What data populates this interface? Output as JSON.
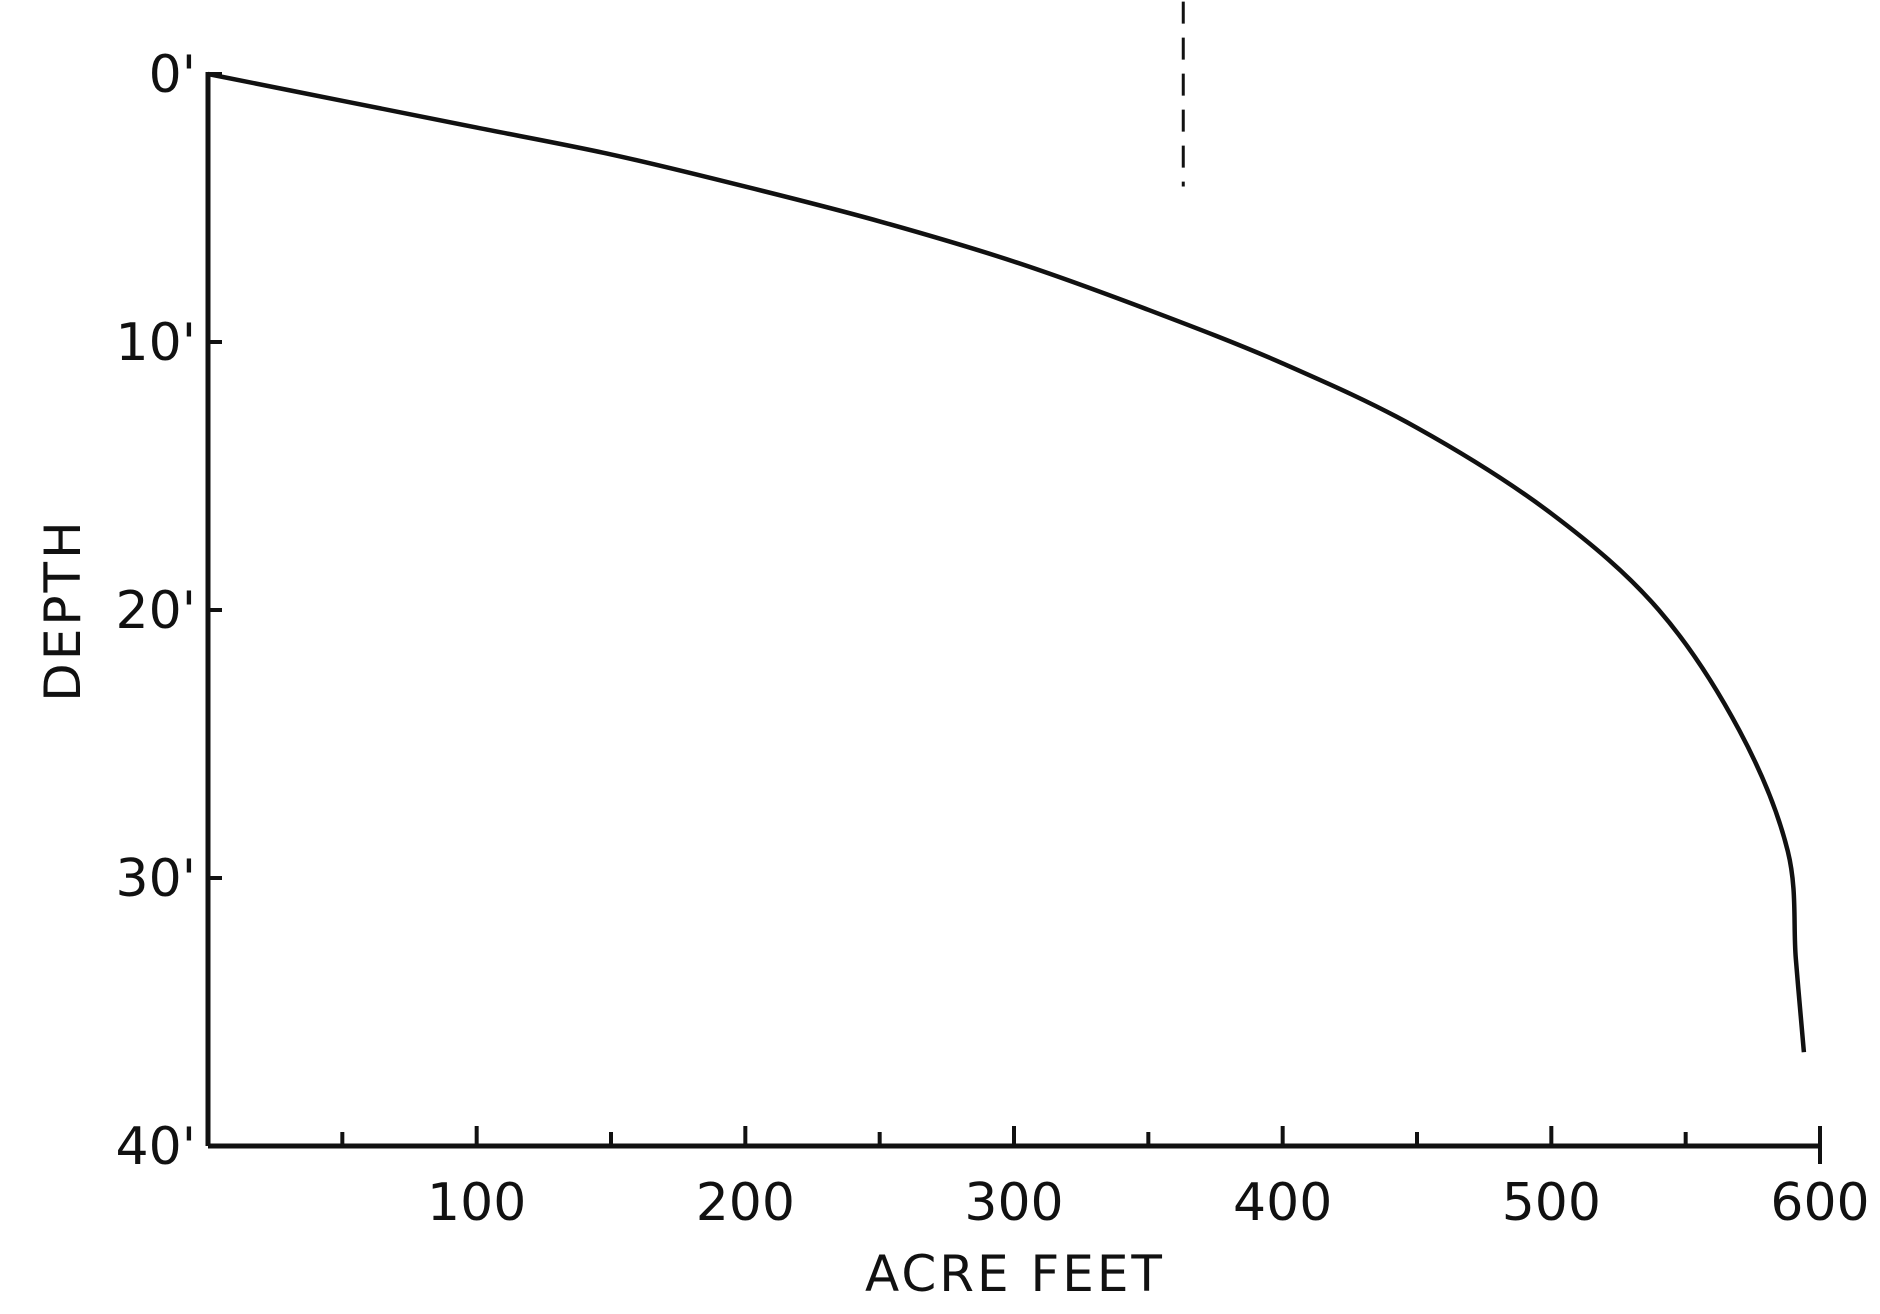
{
  "chart_data": {
    "type": "line",
    "title": "",
    "xlabel": "ACRE FEET",
    "ylabel": "DEPTH",
    "xlim": [
      0,
      600
    ],
    "ylim": [
      0,
      40
    ],
    "y_inverted": true,
    "grid": false,
    "x_ticks": [
      100,
      200,
      300,
      400,
      500,
      600
    ],
    "x_tick_labels": [
      "100",
      "200",
      "300",
      "400",
      "500",
      "600"
    ],
    "x_minor_ticks": [
      50,
      150,
      250,
      350,
      450,
      550
    ],
    "y_ticks": [
      0,
      10,
      20,
      30,
      40
    ],
    "y_tick_labels": [
      "0'",
      "10'",
      "20'",
      "30'",
      "40'"
    ],
    "series": [
      {
        "x": [
          0,
          50,
          100,
          150,
          200,
          250,
          300,
          350,
          400,
          450,
          500,
          540,
          570,
          588,
          591,
          594
        ],
        "y": [
          0,
          1,
          2,
          3,
          4.2,
          5.5,
          7,
          8.8,
          10.8,
          13.2,
          16.4,
          20,
          24.5,
          29,
          33,
          36.5
        ]
      }
    ],
    "marker_line": {
      "x": 363,
      "y": [
        -2.7,
        4.2
      ]
    }
  }
}
